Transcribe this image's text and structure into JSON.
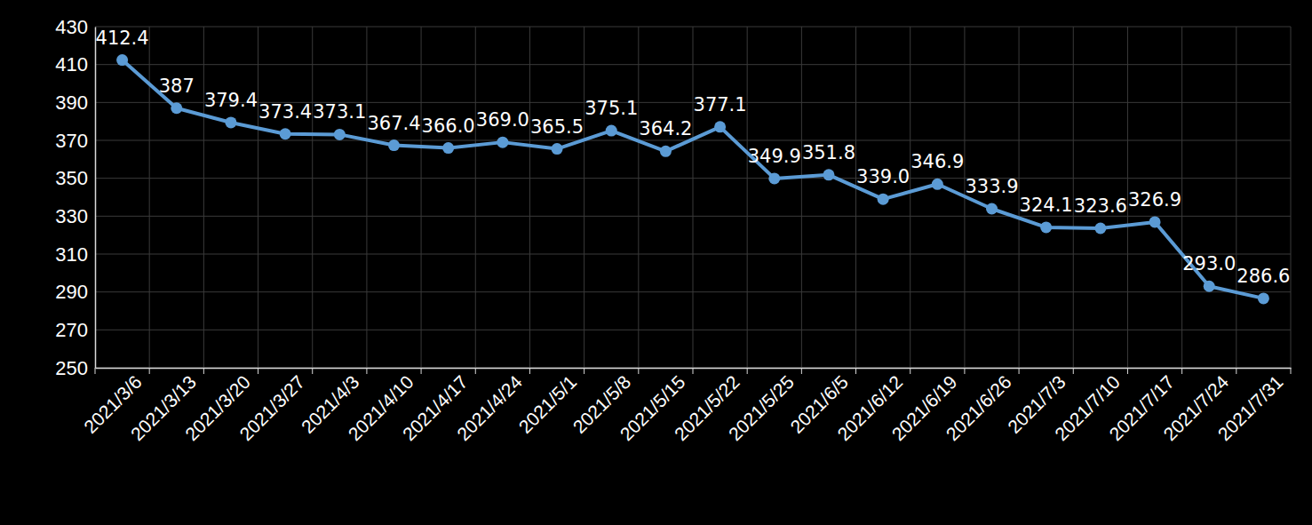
{
  "chart_data": {
    "type": "line",
    "categories": [
      "2021/3/6",
      "2021/3/13",
      "2021/3/20",
      "2021/3/27",
      "2021/4/3",
      "2021/4/10",
      "2021/4/17",
      "2021/4/24",
      "2021/5/1",
      "2021/5/8",
      "2021/5/15",
      "2021/5/22",
      "2021/5/25",
      "2021/6/5",
      "2021/6/12",
      "2021/6/19",
      "2021/6/26",
      "2021/7/3",
      "2021/7/10",
      "2021/7/17",
      "2021/7/24",
      "2021/7/31"
    ],
    "values": [
      412.4,
      387,
      379.4,
      373.4,
      373.1,
      367.4,
      366.0,
      369.0,
      365.5,
      375.1,
      364.2,
      377.1,
      349.9,
      351.8,
      339.0,
      346.9,
      333.9,
      324.1,
      323.6,
      326.9,
      293.0,
      286.6
    ],
    "value_labels": [
      "412.4",
      "387",
      "379.4",
      "373.4",
      "373.1",
      "367.4",
      "366.0",
      "369.0",
      "365.5",
      "375.1",
      "364.2",
      "377.1",
      "349.9",
      "351.8",
      "339.0",
      "346.9",
      "333.9",
      "324.1",
      "323.6",
      "326.9",
      "293.0",
      "286.6"
    ],
    "color": "#5b9bd5",
    "marker": "circle",
    "ylim": [
      250,
      430
    ],
    "yticks": [
      250,
      270,
      290,
      310,
      330,
      350,
      370,
      390,
      410,
      430
    ],
    "grid": true,
    "data_labels": true
  }
}
